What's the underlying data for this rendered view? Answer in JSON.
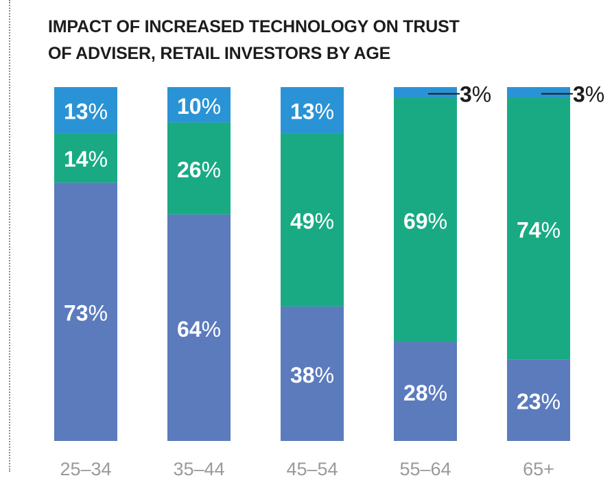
{
  "chart_data": {
    "type": "bar",
    "stacked": true,
    "title_lines": [
      "IMPACT OF INCREASED TECHNOLOGY ON TRUST",
      "OF ADVISER, RETAIL INVESTORS BY AGE"
    ],
    "categories": [
      "25–34",
      "35–44",
      "45–54",
      "55–64",
      "65+"
    ],
    "series": [
      {
        "name": "bottom",
        "color": "#5b7bbd",
        "values": [
          73,
          64,
          38,
          28,
          23
        ]
      },
      {
        "name": "middle",
        "color": "#19aa84",
        "values": [
          14,
          26,
          49,
          69,
          74
        ]
      },
      {
        "name": "top",
        "color": "#2a93d5",
        "values": [
          13,
          10,
          13,
          3,
          3
        ]
      }
    ],
    "value_suffix": "%",
    "ylim": [
      0,
      100
    ],
    "legend": "none",
    "grid": false
  }
}
